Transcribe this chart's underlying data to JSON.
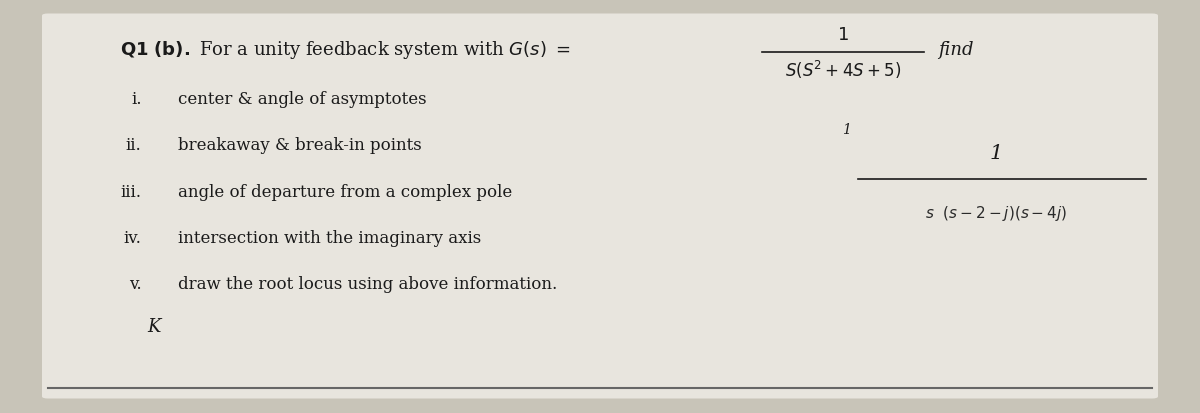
{
  "bg_color": "#c8c4b8",
  "paper_color": "#e8e5de",
  "title_fontsize": 13,
  "items": [
    {
      "num": "i.",
      "text": "center & angle of asymptotes"
    },
    {
      "num": "ii.",
      "text": "breakaway & break-in points"
    },
    {
      "num": "iii.",
      "text": "angle of departure from a complex pole"
    },
    {
      "num": "iv.",
      "text": "intersection with the imaginary axis"
    },
    {
      "num": "v.",
      "text": "draw the root locus using above information."
    },
    {
      "num": "K",
      "text": ""
    }
  ],
  "text_color": "#1a1a1a",
  "find_text": "find"
}
